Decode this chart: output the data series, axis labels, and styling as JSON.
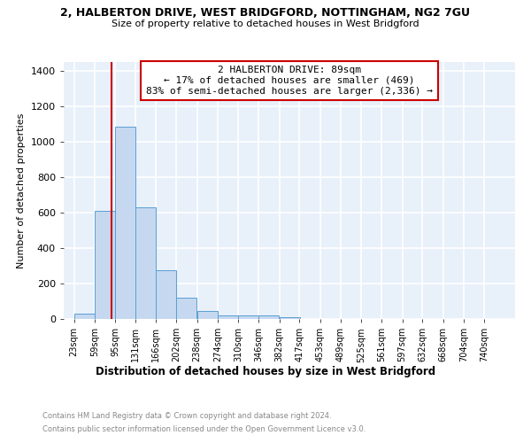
{
  "title1": "2, HALBERTON DRIVE, WEST BRIDGFORD, NOTTINGHAM, NG2 7GU",
  "title2": "Size of property relative to detached houses in West Bridgford",
  "xlabel": "Distribution of detached houses by size in West Bridgford",
  "ylabel": "Number of detached properties",
  "footnote1": "Contains HM Land Registry data © Crown copyright and database right 2024.",
  "footnote2": "Contains public sector information licensed under the Open Government Licence v3.0.",
  "bar_color": "#c5d8f0",
  "bar_edge_color": "#5a9fd4",
  "background_color": "#e8f0fa",
  "grid_color": "#ffffff",
  "annotation_box_color": "#cc0000",
  "vline_color": "#cc0000",
  "annotation_line1": "2 HALBERTON DRIVE: 89sqm",
  "annotation_line2": "← 17% of detached houses are smaller (469)",
  "annotation_line3": "83% of semi-detached houses are larger (2,336) →",
  "property_size": 89,
  "categories": [
    "23sqm",
    "59sqm",
    "95sqm",
    "131sqm",
    "166sqm",
    "202sqm",
    "238sqm",
    "274sqm",
    "310sqm",
    "346sqm",
    "382sqm",
    "417sqm",
    "453sqm",
    "489sqm",
    "525sqm",
    "561sqm",
    "597sqm",
    "632sqm",
    "668sqm",
    "704sqm",
    "740sqm"
  ],
  "bin_edges": [
    23,
    59,
    95,
    131,
    166,
    202,
    238,
    274,
    310,
    346,
    382,
    417,
    453,
    489,
    525,
    561,
    597,
    632,
    668,
    704,
    740
  ],
  "bin_width": 36,
  "values": [
    30,
    610,
    1085,
    630,
    275,
    120,
    45,
    22,
    22,
    18,
    10,
    0,
    0,
    0,
    0,
    0,
    0,
    0,
    0,
    0,
    0
  ],
  "ylim": [
    0,
    1450
  ],
  "yticks": [
    0,
    200,
    400,
    600,
    800,
    1000,
    1200,
    1400
  ]
}
